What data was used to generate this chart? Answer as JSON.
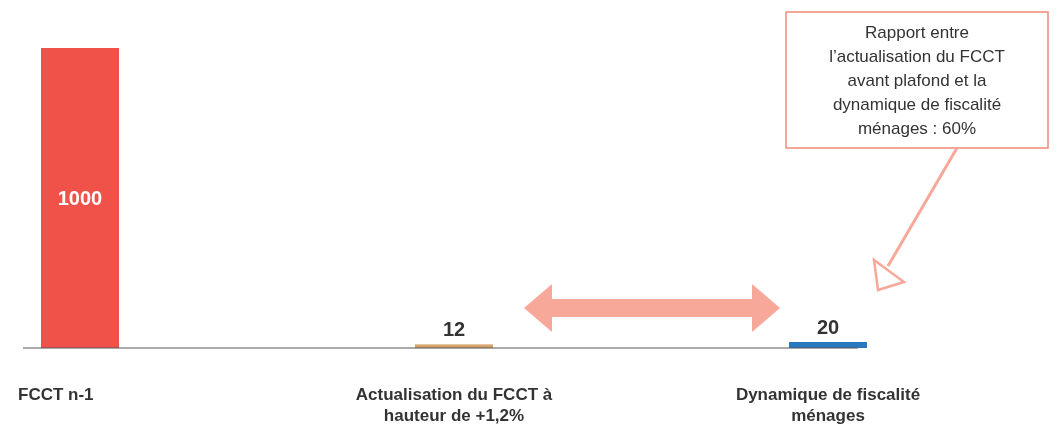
{
  "chart_data": {
    "type": "bar",
    "categories": [
      "FCCT n-1",
      "Actualisation du FCCT à hauteur de +1,2%",
      "Dynamique de fiscalité ménages"
    ],
    "values": [
      1000,
      12,
      20
    ],
    "colors": [
      "#f0524a",
      "#d4a26a",
      "#2878c0"
    ],
    "data_labels": true,
    "annotations": [
      "Rapport entre l’actualisation du FCCT avant plafond et la dynamique de fiscalité ménages : 60%"
    ]
  }
}
